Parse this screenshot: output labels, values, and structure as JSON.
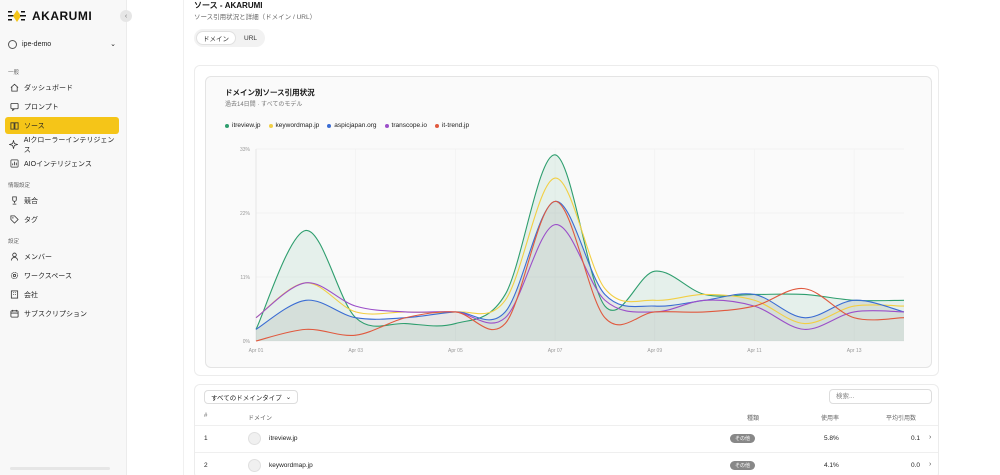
{
  "app": {
    "logo_text": "AKARUMI"
  },
  "workspace": {
    "name": "ipe-demo"
  },
  "nav": {
    "section_general": "一般",
    "section_reading": "情報設定",
    "section_settings": "設定",
    "items": [
      {
        "label": "ダッシュボード",
        "icon": "home-icon"
      },
      {
        "label": "プロンプト",
        "icon": "chat-icon"
      },
      {
        "label": "ソース",
        "icon": "book-icon"
      },
      {
        "label": "AIクローラーインテリジェンス",
        "icon": "sparkle-icon"
      },
      {
        "label": "AIOインテリジェンス",
        "icon": "bar-chart-icon"
      },
      {
        "label": "競合",
        "icon": "trophy-icon"
      },
      {
        "label": "タグ",
        "icon": "tag-icon"
      },
      {
        "label": "メンバー",
        "icon": "user-icon"
      },
      {
        "label": "ワークスペース",
        "icon": "gear-icon"
      },
      {
        "label": "会社",
        "icon": "building-icon"
      },
      {
        "label": "サブスクリプション",
        "icon": "calendar-icon"
      }
    ]
  },
  "page": {
    "title": "ソース - AKARUMI",
    "subtitle": "ソース引用状況と詳細（ドメイン / URL）",
    "tabs": [
      "ドメイン",
      "URL"
    ]
  },
  "chart": {
    "title": "ドメイン別ソース引用状況",
    "subtitle": "過去14日間 · すべてのモデル"
  },
  "chart_data": {
    "type": "line",
    "x": [
      "Apr 01",
      "Apr 02",
      "Apr 03",
      "Apr 04",
      "Apr 05",
      "Apr 06",
      "Apr 07",
      "Apr 08",
      "Apr 09",
      "Apr 10",
      "Apr 11",
      "Apr 12",
      "Apr 13",
      "Apr 14"
    ],
    "tick_labels": [
      "Apr 01",
      "Apr 03",
      "Apr 05",
      "Apr 07",
      "Apr 09",
      "Apr 11",
      "Apr 13"
    ],
    "ylim": [
      0,
      33
    ],
    "yticks": [
      "0%",
      "11%",
      "22%",
      "33%"
    ],
    "grid": true,
    "legend_position": "top-left",
    "series": [
      {
        "name": "itreview.jp",
        "color": "#2e9e6e",
        "values": [
          2,
          19,
          4,
          3,
          3,
          8,
          32,
          6,
          12,
          8,
          8,
          8,
          7,
          7
        ]
      },
      {
        "name": "keywordmap.jp",
        "color": "#f2cf44",
        "values": [
          4,
          10,
          5,
          5,
          5,
          7,
          28,
          9,
          7,
          8,
          7,
          3,
          6,
          6
        ]
      },
      {
        "name": "aspicjapan.org",
        "color": "#3a6cd3",
        "values": [
          2,
          7,
          4,
          4,
          5,
          5,
          24,
          8,
          6,
          7,
          8,
          4,
          7,
          5
        ]
      },
      {
        "name": "transcope.io",
        "color": "#9b4fc9",
        "values": [
          4,
          10,
          6,
          5,
          5,
          4,
          20,
          7,
          5,
          7,
          6,
          2,
          5,
          5
        ]
      },
      {
        "name": "it-trend.jp",
        "color": "#e0593e",
        "values": [
          0,
          2,
          1,
          4,
          5,
          3,
          24,
          4,
          5,
          5,
          6,
          9,
          4,
          4
        ]
      }
    ],
    "area_series": [
      "itreview.jp",
      "aspicjapan.org"
    ]
  },
  "table": {
    "filter_label": "すべてのドメインタイプ",
    "search_placeholder": "検索...",
    "headers": {
      "index": "#",
      "domain": "ドメイン",
      "type": "種類",
      "usage": "使用率",
      "avg": "平均引用数"
    },
    "rows": [
      {
        "index": "1",
        "domain": "itreview.jp",
        "type": "その他",
        "usage": "5.8%",
        "avg": "0.1"
      },
      {
        "index": "2",
        "domain": "keywordmap.jp",
        "type": "その他",
        "usage": "4.1%",
        "avg": "0.0"
      }
    ]
  }
}
